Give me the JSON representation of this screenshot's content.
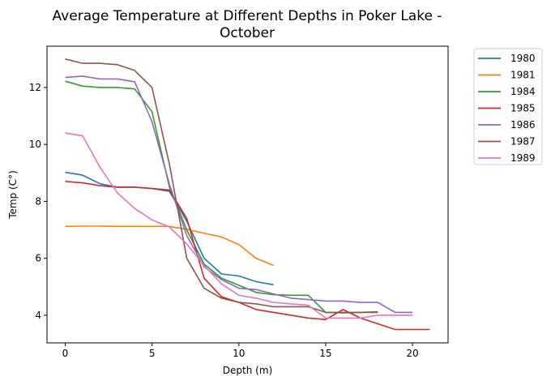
{
  "chart_data": {
    "type": "line",
    "title_line1": "Average Temperature at Different Depths in Poker Lake -",
    "title_line2": "October",
    "xlabel": "Depth (m)",
    "ylabel": "Temp (C°)",
    "xlim": [
      -1.05,
      22.05
    ],
    "ylim": [
      3.03,
      13.45
    ],
    "xticks": [
      0,
      5,
      10,
      15,
      20
    ],
    "yticks": [
      4,
      6,
      8,
      10,
      12
    ],
    "grid": false,
    "legend_position": "outside-right",
    "series": [
      {
        "name": "1980",
        "color": "#1f77b4",
        "x": [
          0,
          1,
          2,
          3,
          4,
          5,
          6,
          7,
          8,
          9,
          10,
          11,
          12
        ],
        "y": [
          9.02,
          8.92,
          8.62,
          8.5,
          8.5,
          8.45,
          8.35,
          7.3,
          6.0,
          5.45,
          5.38,
          5.18,
          5.07
        ]
      },
      {
        "name": "1981",
        "color": "#ff7f0e",
        "x": [
          0,
          1,
          2,
          3,
          4,
          5,
          6,
          7,
          8,
          9,
          10,
          11,
          12
        ],
        "y": [
          7.12,
          7.13,
          7.13,
          7.12,
          7.12,
          7.12,
          7.12,
          7.02,
          6.88,
          6.75,
          6.48,
          6.0,
          5.75
        ]
      },
      {
        "name": "1984",
        "color": "#2ca02c",
        "x": [
          0,
          1,
          2,
          3,
          4,
          5,
          6,
          7,
          8,
          9,
          10,
          11,
          12,
          13,
          14,
          15,
          16,
          17,
          18
        ],
        "y": [
          12.22,
          12.05,
          12.0,
          12.0,
          11.95,
          11.15,
          8.5,
          7.0,
          5.8,
          5.3,
          5.05,
          4.8,
          4.72,
          4.7,
          4.7,
          4.1,
          4.08,
          4.1,
          4.12
        ]
      },
      {
        "name": "1985",
        "color": "#d62728",
        "x": [
          0,
          1,
          2,
          3,
          4,
          5,
          6,
          7,
          8,
          9,
          10,
          11,
          12,
          13,
          14,
          15,
          16,
          17,
          18,
          19,
          20,
          21
        ],
        "y": [
          8.7,
          8.65,
          8.55,
          8.5,
          8.5,
          8.45,
          8.4,
          7.4,
          5.3,
          4.65,
          4.45,
          4.2,
          4.1,
          4.0,
          3.9,
          3.85,
          4.2,
          3.9,
          3.7,
          3.5,
          3.5,
          3.5
        ]
      },
      {
        "name": "1986",
        "color": "#9467bd",
        "x": [
          0,
          1,
          2,
          3,
          4,
          5,
          6,
          7,
          8,
          9,
          10,
          11,
          12,
          13,
          14,
          15,
          16,
          17,
          18,
          19,
          20
        ],
        "y": [
          12.35,
          12.4,
          12.3,
          12.3,
          12.2,
          10.8,
          8.6,
          6.8,
          5.7,
          5.25,
          4.95,
          4.9,
          4.75,
          4.6,
          4.55,
          4.5,
          4.5,
          4.45,
          4.45,
          4.1,
          4.1
        ]
      },
      {
        "name": "1987",
        "color": "#8c564b",
        "x": [
          0,
          1,
          2,
          3,
          4,
          5,
          6,
          7,
          8,
          9,
          10,
          11,
          12,
          13,
          14,
          15,
          16,
          17,
          18
        ],
        "y": [
          13.0,
          12.85,
          12.85,
          12.8,
          12.6,
          12.0,
          9.3,
          6.0,
          4.95,
          4.6,
          4.45,
          4.4,
          4.3,
          4.3,
          4.3,
          4.1,
          4.1,
          4.1,
          4.1
        ]
      },
      {
        "name": "1989",
        "color": "#e377c2",
        "x": [
          0,
          1,
          2,
          3,
          4,
          5,
          6,
          7,
          8,
          9,
          10,
          11,
          12,
          13,
          14,
          15,
          16,
          17,
          18,
          19,
          20
        ],
        "y": [
          10.4,
          10.3,
          9.2,
          8.3,
          7.75,
          7.35,
          7.1,
          6.5,
          5.75,
          5.1,
          4.7,
          4.6,
          4.45,
          4.4,
          4.35,
          3.9,
          3.9,
          3.9,
          4.0,
          4.0,
          4.0
        ]
      }
    ]
  }
}
